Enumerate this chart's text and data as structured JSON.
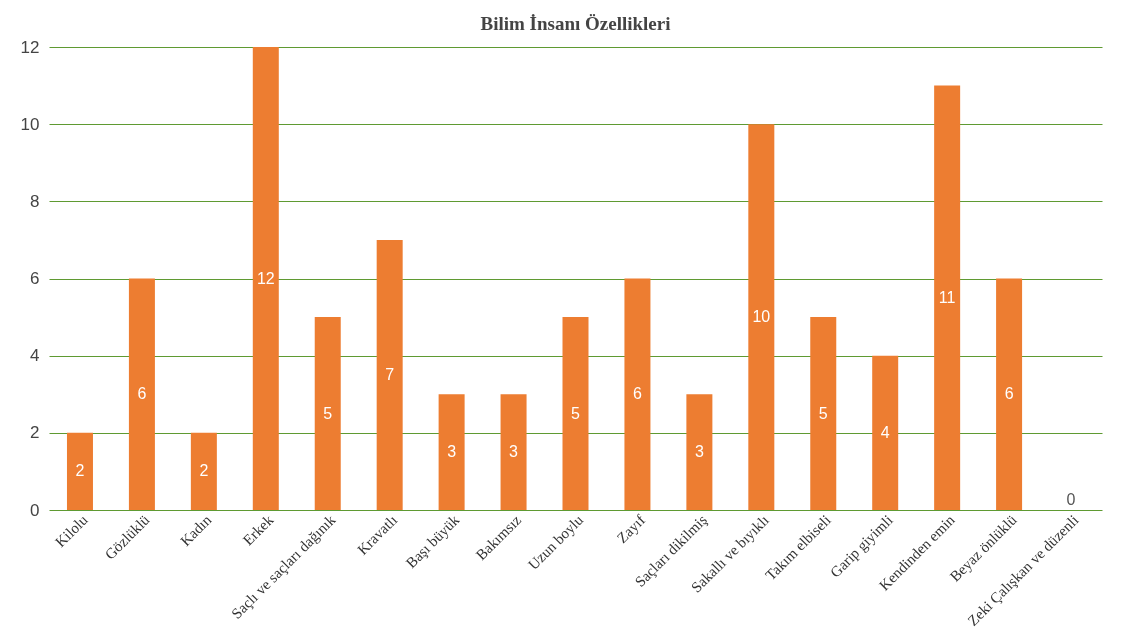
{
  "chart_data": {
    "type": "bar",
    "title": "Bilim İnsanı Özellikleri",
    "categories": [
      "Kilolu",
      "Gözlüklü",
      "Kadın",
      "Erkek",
      "Saçlı ve saçları dağınık",
      "Kravatlı",
      "Başı büyük",
      "Bakımsız",
      "Uzun boylu",
      "Zayıf",
      "Saçları dikilmiş",
      "Sakallı ve bıyıklı",
      "Takım elbiseli",
      "Garip giyimli",
      "Kendinden emin",
      "Beyaz önlüklü",
      "Zeki Çalışkan ve düzenli"
    ],
    "values": [
      2,
      6,
      2,
      12,
      5,
      7,
      3,
      3,
      5,
      6,
      3,
      10,
      5,
      4,
      11,
      6,
      0
    ],
    "color": "#ed7d31",
    "ylim": [
      0,
      12
    ],
    "yticks": [
      0,
      2,
      4,
      6,
      8,
      10,
      12
    ],
    "grid": "y",
    "data_labels": true
  }
}
